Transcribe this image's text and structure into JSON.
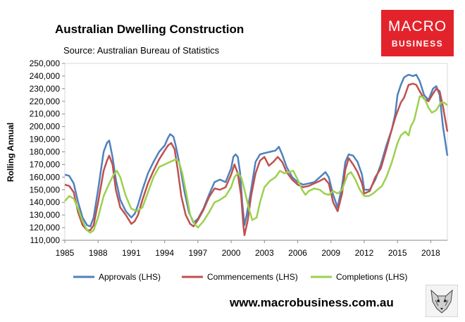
{
  "header": {
    "title": "Australian Dwelling Construction",
    "subtitle": "Source: Australian Bureau of Statistics"
  },
  "logo": {
    "line1": "MACRO",
    "line2": "BUSINESS",
    "color": "#e3232b"
  },
  "footer": {
    "url": "www.macrobusiness.com.au"
  },
  "chart_data": {
    "type": "line",
    "title": "Australian Dwelling Construction",
    "xlabel": "",
    "ylabel": "Rolling Annual",
    "xlim": [
      1985,
      2019.5
    ],
    "ylim": [
      110000,
      250000
    ],
    "x_ticks": [
      1985,
      1988,
      1991,
      1994,
      1997,
      2000,
      2003,
      2006,
      2009,
      2012,
      2015,
      2018
    ],
    "y_ticks": [
      110000,
      120000,
      130000,
      140000,
      150000,
      160000,
      170000,
      180000,
      190000,
      200000,
      210000,
      220000,
      230000,
      240000,
      250000
    ],
    "y_tick_labels": [
      "110,000",
      "120,000",
      "130,000",
      "140,000",
      "150,000",
      "160,000",
      "170,000",
      "180,000",
      "190,000",
      "200,000",
      "210,000",
      "220,000",
      "230,000",
      "240,000",
      "250,000"
    ],
    "legend_position": "bottom",
    "series": [
      {
        "name": "Approvals (LHS)",
        "color": "#4f81bd",
        "points": [
          [
            1985,
            162000
          ],
          [
            1985.4,
            161000
          ],
          [
            1985.8,
            155000
          ],
          [
            1986.2,
            140000
          ],
          [
            1986.6,
            128000
          ],
          [
            1987.0,
            122000
          ],
          [
            1987.3,
            121000
          ],
          [
            1987.6,
            128000
          ],
          [
            1988.0,
            150000
          ],
          [
            1988.5,
            180000
          ],
          [
            1988.8,
            187000
          ],
          [
            1989.0,
            189000
          ],
          [
            1989.3,
            176000
          ],
          [
            1989.6,
            158000
          ],
          [
            1990.0,
            142000
          ],
          [
            1990.5,
            133000
          ],
          [
            1991.0,
            128000
          ],
          [
            1991.3,
            131000
          ],
          [
            1991.6,
            138000
          ],
          [
            1992.0,
            150000
          ],
          [
            1992.5,
            163000
          ],
          [
            1993.0,
            172000
          ],
          [
            1993.5,
            180000
          ],
          [
            1994.0,
            185000
          ],
          [
            1994.3,
            191000
          ],
          [
            1994.5,
            194000
          ],
          [
            1994.8,
            192000
          ],
          [
            1995.0,
            185000
          ],
          [
            1995.4,
            168000
          ],
          [
            1995.8,
            148000
          ],
          [
            1996.2,
            132000
          ],
          [
            1996.6,
            124000
          ],
          [
            1997.0,
            127000
          ],
          [
            1997.5,
            135000
          ],
          [
            1998.0,
            146000
          ],
          [
            1998.5,
            156000
          ],
          [
            1999.0,
            158000
          ],
          [
            1999.5,
            156000
          ],
          [
            2000.0,
            167000
          ],
          [
            2000.2,
            176000
          ],
          [
            2000.4,
            178000
          ],
          [
            2000.6,
            176000
          ],
          [
            2000.8,
            164000
          ],
          [
            2001.0,
            140000
          ],
          [
            2001.2,
            122000
          ],
          [
            2001.4,
            130000
          ],
          [
            2001.8,
            150000
          ],
          [
            2002.2,
            172000
          ],
          [
            2002.6,
            178000
          ],
          [
            2003.0,
            179000
          ],
          [
            2003.5,
            180000
          ],
          [
            2004.0,
            181000
          ],
          [
            2004.3,
            184000
          ],
          [
            2004.6,
            178000
          ],
          [
            2005.0,
            168000
          ],
          [
            2005.5,
            160000
          ],
          [
            2006.0,
            156000
          ],
          [
            2006.5,
            154000
          ],
          [
            2007.0,
            155000
          ],
          [
            2007.5,
            156000
          ],
          [
            2008.0,
            160000
          ],
          [
            2008.5,
            164000
          ],
          [
            2008.8,
            160000
          ],
          [
            2009.2,
            146000
          ],
          [
            2009.6,
            136000
          ],
          [
            2010.0,
            153000
          ],
          [
            2010.3,
            172000
          ],
          [
            2010.6,
            178000
          ],
          [
            2011.0,
            177000
          ],
          [
            2011.4,
            172000
          ],
          [
            2011.8,
            162000
          ],
          [
            2012.0,
            150000
          ],
          [
            2012.5,
            150000
          ],
          [
            2013.0,
            158000
          ],
          [
            2013.5,
            170000
          ],
          [
            2014.0,
            185000
          ],
          [
            2014.5,
            198000
          ],
          [
            2014.8,
            210000
          ],
          [
            2015.0,
            225000
          ],
          [
            2015.3,
            233000
          ],
          [
            2015.6,
            239000
          ],
          [
            2016.0,
            241000
          ],
          [
            2016.4,
            240000
          ],
          [
            2016.7,
            241000
          ],
          [
            2017.0,
            236000
          ],
          [
            2017.4,
            225000
          ],
          [
            2017.8,
            221000
          ],
          [
            2018.2,
            230000
          ],
          [
            2018.5,
            232000
          ],
          [
            2018.8,
            225000
          ],
          [
            2019.1,
            200000
          ],
          [
            2019.5,
            177000
          ]
        ]
      },
      {
        "name": "Commencements (LHS)",
        "color": "#c0504d",
        "points": [
          [
            1985,
            154000
          ],
          [
            1985.4,
            153000
          ],
          [
            1985.8,
            148000
          ],
          [
            1986.2,
            132000
          ],
          [
            1986.6,
            122000
          ],
          [
            1987.0,
            118000
          ],
          [
            1987.3,
            118000
          ],
          [
            1987.6,
            122000
          ],
          [
            1988.0,
            140000
          ],
          [
            1988.5,
            165000
          ],
          [
            1988.8,
            173000
          ],
          [
            1989.0,
            177000
          ],
          [
            1989.3,
            170000
          ],
          [
            1989.6,
            150000
          ],
          [
            1990.0,
            136000
          ],
          [
            1990.5,
            130000
          ],
          [
            1991.0,
            123000
          ],
          [
            1991.3,
            125000
          ],
          [
            1991.6,
            130000
          ],
          [
            1992.0,
            142000
          ],
          [
            1992.5,
            155000
          ],
          [
            1993.0,
            165000
          ],
          [
            1993.5,
            174000
          ],
          [
            1994.0,
            181000
          ],
          [
            1994.3,
            185000
          ],
          [
            1994.6,
            187000
          ],
          [
            1994.9,
            182000
          ],
          [
            1995.2,
            165000
          ],
          [
            1995.5,
            145000
          ],
          [
            1995.9,
            130000
          ],
          [
            1996.3,
            123000
          ],
          [
            1996.6,
            121000
          ],
          [
            1997.0,
            126000
          ],
          [
            1997.5,
            134000
          ],
          [
            1998.0,
            144000
          ],
          [
            1998.5,
            151000
          ],
          [
            1999.0,
            150000
          ],
          [
            1999.5,
            152000
          ],
          [
            2000.0,
            162000
          ],
          [
            2000.3,
            170000
          ],
          [
            2000.6,
            163000
          ],
          [
            2000.9,
            145000
          ],
          [
            2001.1,
            122000
          ],
          [
            2001.2,
            114000
          ],
          [
            2001.5,
            126000
          ],
          [
            2001.8,
            145000
          ],
          [
            2002.2,
            163000
          ],
          [
            2002.6,
            173000
          ],
          [
            2003.0,
            176000
          ],
          [
            2003.4,
            169000
          ],
          [
            2003.8,
            172000
          ],
          [
            2004.2,
            176000
          ],
          [
            2004.6,
            172000
          ],
          [
            2005.0,
            164000
          ],
          [
            2005.5,
            158000
          ],
          [
            2006.0,
            154000
          ],
          [
            2006.5,
            152000
          ],
          [
            2007.0,
            153000
          ],
          [
            2007.5,
            155000
          ],
          [
            2008.0,
            157000
          ],
          [
            2008.4,
            159000
          ],
          [
            2008.8,
            155000
          ],
          [
            2009.2,
            140000
          ],
          [
            2009.6,
            133000
          ],
          [
            2010.0,
            147000
          ],
          [
            2010.3,
            166000
          ],
          [
            2010.6,
            175000
          ],
          [
            2011.0,
            170000
          ],
          [
            2011.4,
            164000
          ],
          [
            2011.8,
            155000
          ],
          [
            2012.0,
            147000
          ],
          [
            2012.5,
            149000
          ],
          [
            2013.0,
            160000
          ],
          [
            2013.5,
            167000
          ],
          [
            2014.0,
            182000
          ],
          [
            2014.4,
            195000
          ],
          [
            2014.8,
            207000
          ],
          [
            2015.0,
            212000
          ],
          [
            2015.3,
            219000
          ],
          [
            2015.6,
            223000
          ],
          [
            2016.0,
            233000
          ],
          [
            2016.4,
            234000
          ],
          [
            2016.7,
            233000
          ],
          [
            2017.0,
            228000
          ],
          [
            2017.4,
            222000
          ],
          [
            2017.8,
            220000
          ],
          [
            2018.2,
            226000
          ],
          [
            2018.5,
            230000
          ],
          [
            2018.8,
            228000
          ],
          [
            2019.1,
            216000
          ],
          [
            2019.5,
            196000
          ]
        ]
      },
      {
        "name": "Completions (LHS)",
        "color": "#9bd14e",
        "points": [
          [
            1985,
            141000
          ],
          [
            1985.4,
            145000
          ],
          [
            1985.8,
            143000
          ],
          [
            1986.2,
            135000
          ],
          [
            1986.6,
            125000
          ],
          [
            1987.0,
            118000
          ],
          [
            1987.3,
            116000
          ],
          [
            1987.6,
            118000
          ],
          [
            1988.0,
            128000
          ],
          [
            1988.5,
            145000
          ],
          [
            1989.0,
            155000
          ],
          [
            1989.4,
            162000
          ],
          [
            1989.7,
            165000
          ],
          [
            1990.0,
            160000
          ],
          [
            1990.5,
            145000
          ],
          [
            1991.0,
            135000
          ],
          [
            1991.5,
            133000
          ],
          [
            1992.0,
            136000
          ],
          [
            1992.5,
            148000
          ],
          [
            1993.0,
            160000
          ],
          [
            1993.5,
            168000
          ],
          [
            1994.0,
            170000
          ],
          [
            1994.5,
            172000
          ],
          [
            1995.0,
            174000
          ],
          [
            1995.3,
            172000
          ],
          [
            1995.6,
            163000
          ],
          [
            1996.0,
            145000
          ],
          [
            1996.3,
            130000
          ],
          [
            1996.7,
            123000
          ],
          [
            1997.0,
            120000
          ],
          [
            1997.5,
            125000
          ],
          [
            1998.0,
            132000
          ],
          [
            1998.5,
            140000
          ],
          [
            1999.0,
            142000
          ],
          [
            1999.5,
            145000
          ],
          [
            2000.0,
            152000
          ],
          [
            2000.3,
            160000
          ],
          [
            2000.6,
            163000
          ],
          [
            2000.9,
            160000
          ],
          [
            2001.2,
            150000
          ],
          [
            2001.6,
            135000
          ],
          [
            2001.9,
            126000
          ],
          [
            2002.3,
            128000
          ],
          [
            2002.6,
            140000
          ],
          [
            2003.0,
            152000
          ],
          [
            2003.5,
            157000
          ],
          [
            2004.0,
            160000
          ],
          [
            2004.4,
            165000
          ],
          [
            2004.8,
            163000
          ],
          [
            2005.2,
            164000
          ],
          [
            2005.6,
            165000
          ],
          [
            2006.0,
            158000
          ],
          [
            2006.4,
            150000
          ],
          [
            2006.7,
            146000
          ],
          [
            2007.0,
            149000
          ],
          [
            2007.5,
            151000
          ],
          [
            2008.0,
            150000
          ],
          [
            2008.4,
            147000
          ],
          [
            2008.8,
            146000
          ],
          [
            2009.2,
            149000
          ],
          [
            2009.6,
            147000
          ],
          [
            2010.0,
            150000
          ],
          [
            2010.5,
            162000
          ],
          [
            2010.8,
            164000
          ],
          [
            2011.2,
            158000
          ],
          [
            2011.6,
            150000
          ],
          [
            2012.0,
            145000
          ],
          [
            2012.4,
            145000
          ],
          [
            2012.8,
            147000
          ],
          [
            2013.2,
            150000
          ],
          [
            2013.6,
            153000
          ],
          [
            2014.0,
            160000
          ],
          [
            2014.5,
            172000
          ],
          [
            2015.0,
            187000
          ],
          [
            2015.3,
            193000
          ],
          [
            2015.7,
            196000
          ],
          [
            2016.0,
            193000
          ],
          [
            2016.2,
            200000
          ],
          [
            2016.5,
            205000
          ],
          [
            2016.8,
            216000
          ],
          [
            2017.0,
            224000
          ],
          [
            2017.4,
            223000
          ],
          [
            2017.8,
            215000
          ],
          [
            2018.1,
            211000
          ],
          [
            2018.5,
            213000
          ],
          [
            2018.9,
            219000
          ],
          [
            2019.2,
            219000
          ],
          [
            2019.5,
            217000
          ]
        ]
      }
    ]
  }
}
